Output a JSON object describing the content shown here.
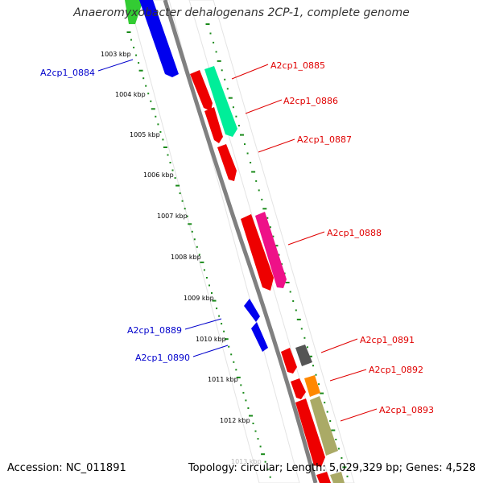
{
  "title": "Anaeromyxobacter dehalogenans 2CP-1, complete genome",
  "footer": {
    "accession": "Accession: NC_011891",
    "summary": "Topology: circular; Length: 5,029,329 bp; Genes: 4,528"
  },
  "colors": {
    "backbone": "#808080",
    "tick": "#1a8a1a",
    "label_red": "#e00000",
    "label_blue": "#0000cc",
    "ring_fill": "#ffffff"
  },
  "scale_labels": [
    {
      "kbp": 1003,
      "text": "1003 kbp"
    },
    {
      "kbp": 1004,
      "text": "1004 kbp"
    },
    {
      "kbp": 1005,
      "text": "1005 kbp"
    },
    {
      "kbp": 1006,
      "text": "1006 kbp"
    },
    {
      "kbp": 1007,
      "text": "1007 kbp"
    },
    {
      "kbp": 1008,
      "text": "1008 kbp"
    },
    {
      "kbp": 1009,
      "text": "1009 kbp"
    },
    {
      "kbp": 1010,
      "text": "1010 kbp"
    },
    {
      "kbp": 1011,
      "text": "1011 kbp"
    },
    {
      "kbp": 1012,
      "text": "1012 kbp"
    },
    {
      "kbp": 1013,
      "text": "1013 kbp"
    }
  ],
  "genes": [
    {
      "id": "A2cp1_0884",
      "label": "A2cp1_0884",
      "label_color": "#0000cc",
      "color": "#0000ee",
      "track": "inner",
      "strand": "-"
    },
    {
      "id": "A2cp1_0885",
      "label": "A2cp1_0885",
      "label_color": "#e00000",
      "color": "#00ee99",
      "track": "outer",
      "strand": "+"
    },
    {
      "id": "A2cp1_0886",
      "label": "A2cp1_0886",
      "label_color": "#e00000",
      "color": "#ee0000",
      "track": "mid",
      "strand": "+"
    },
    {
      "id": "A2cp1_0887",
      "label": "A2cp1_0887",
      "label_color": "#e00000",
      "color": "#ee0000",
      "track": "mid",
      "strand": "+"
    },
    {
      "id": "A2cp1_0888",
      "label": "A2cp1_0888",
      "label_color": "#e00000",
      "color": "#ee0000",
      "track": "mid",
      "strand": "+"
    },
    {
      "id": "A2cp1_0888_b",
      "label": "",
      "label_color": "#e00000",
      "color": "#ee1188",
      "track": "outer",
      "strand": "+"
    },
    {
      "id": "A2cp1_0889",
      "label": "A2cp1_0889",
      "label_color": "#0000cc",
      "color": "#0000ee",
      "track": "inner",
      "strand": "-"
    },
    {
      "id": "A2cp1_0890",
      "label": "A2cp1_0890",
      "label_color": "#0000cc",
      "color": "#0000ee",
      "track": "inner",
      "strand": "-"
    },
    {
      "id": "A2cp1_0891",
      "label": "A2cp1_0891",
      "label_color": "#e00000",
      "color": "#555555",
      "track": "outer",
      "strand": "+"
    },
    {
      "id": "A2cp1_0892",
      "label": "A2cp1_0892",
      "label_color": "#e00000",
      "color": "#ff8800",
      "track": "outer",
      "strand": "+"
    },
    {
      "id": "A2cp1_0893",
      "label": "A2cp1_0893",
      "label_color": "#e00000",
      "color": "#aaaa66",
      "track": "outer",
      "strand": "+"
    }
  ]
}
